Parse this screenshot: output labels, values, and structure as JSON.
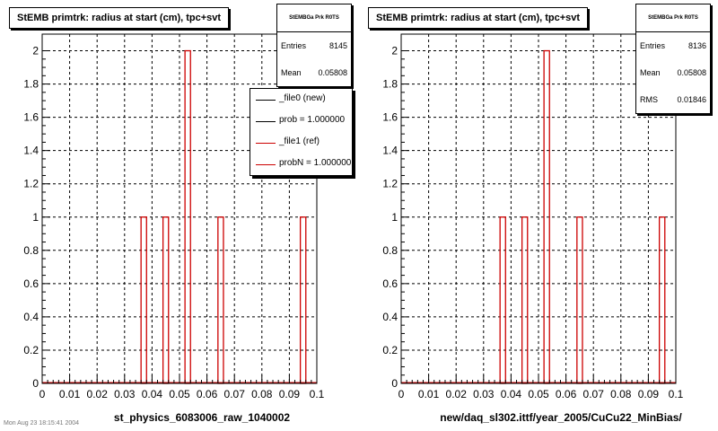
{
  "chart_data": [
    {
      "type": "bar",
      "title": "StEMB primtrk: radius at start (cm), tpc+svt",
      "xlabel": "st_physics_6083006_raw_1040002",
      "ylabel": "",
      "xlim": [
        0,
        0.1
      ],
      "ylim": [
        0,
        2.1
      ],
      "grid": true,
      "x_ticks": [
        "0",
        "0.01",
        "0.02",
        "0.03",
        "0.04",
        "0.05",
        "0.06",
        "0.07",
        "0.08",
        "0.09",
        "0.1"
      ],
      "y_ticks": [
        "0",
        "0.2",
        "0.4",
        "0.6",
        "0.8",
        "1",
        "1.2",
        "1.4",
        "1.6",
        "1.8",
        "2"
      ],
      "bin_width": 0.002,
      "series": [
        {
          "color": "#cc0000",
          "bins": [
            {
              "x0": 0.036,
              "value": 1
            },
            {
              "x0": 0.044,
              "value": 1
            },
            {
              "x0": 0.052,
              "value": 2
            },
            {
              "x0": 0.064,
              "value": 1
            },
            {
              "x0": 0.094,
              "value": 1
            }
          ]
        }
      ],
      "stats": {
        "header": "StEMBGa Prk R0TS",
        "rows": [
          {
            "label": "Entries",
            "value": "8145"
          },
          {
            "label": "Mean",
            "value": "0.05808"
          }
        ]
      },
      "legend": {
        "entries": [
          {
            "label": "_file0 (new)",
            "color": "#000000"
          },
          {
            "label": "prob = 1.000000",
            "color": "#000000"
          },
          {
            "label": "_file1 (ref)",
            "color": "#cc0000"
          },
          {
            "label": "probN = 1.000000",
            "color": "#cc0000"
          }
        ]
      },
      "footer": "Mon Aug 23 18:15:41 2004"
    },
    {
      "type": "bar",
      "title": "StEMB primtrk: radius at start (cm), tpc+svt",
      "xlabel": "new/daq_sl302.ittf/year_2005/CuCu22_MinBias/",
      "ylabel": "",
      "xlim": [
        0,
        0.1
      ],
      "ylim": [
        0,
        2.1
      ],
      "grid": true,
      "x_ticks": [
        "0",
        "0.01",
        "0.02",
        "0.03",
        "0.04",
        "0.05",
        "0.06",
        "0.07",
        "0.08",
        "0.09",
        "0.1"
      ],
      "y_ticks": [
        "0",
        "0.2",
        "0.4",
        "0.6",
        "0.8",
        "1",
        "1.2",
        "1.4",
        "1.6",
        "1.8",
        "2"
      ],
      "bin_width": 0.002,
      "series": [
        {
          "color": "#cc0000",
          "bins": [
            {
              "x0": 0.036,
              "value": 1
            },
            {
              "x0": 0.044,
              "value": 1
            },
            {
              "x0": 0.052,
              "value": 2
            },
            {
              "x0": 0.064,
              "value": 1
            },
            {
              "x0": 0.094,
              "value": 1
            }
          ]
        }
      ],
      "stats": {
        "header": "StEMBGa Prk R0TS",
        "rows": [
          {
            "label": "Entries",
            "value": "8136"
          },
          {
            "label": "Mean",
            "value": "0.05808"
          },
          {
            "label": "RMS",
            "value": "0.01846"
          }
        ]
      }
    }
  ]
}
